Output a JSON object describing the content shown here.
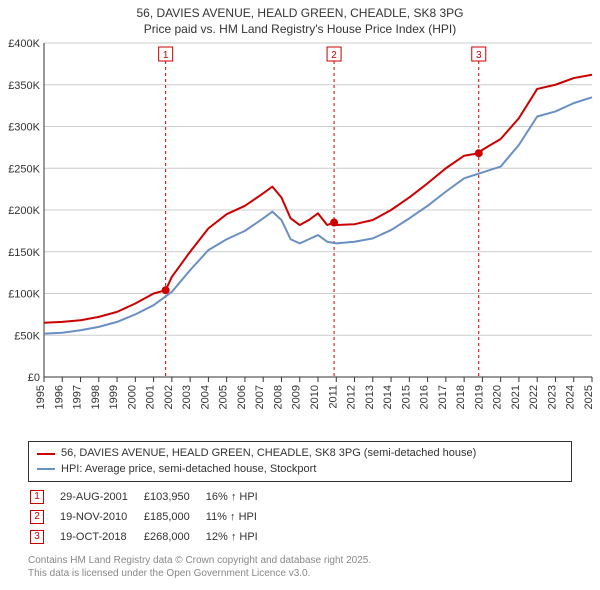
{
  "title_line1": "56, DAVIES AVENUE, HEALD GREEN, CHEADLE, SK8 3PG",
  "title_line2": "Price paid vs. HM Land Registry's House Price Index (HPI)",
  "chart": {
    "type": "line",
    "background_color": "#ffffff",
    "grid_color": "#cccccc",
    "axis_color": "#333333",
    "xlim": [
      1995,
      2025
    ],
    "ylim": [
      0,
      400000
    ],
    "ytick_step": 50000,
    "ytick_labels": [
      "£0",
      "£50K",
      "£100K",
      "£150K",
      "£200K",
      "£250K",
      "£300K",
      "£350K",
      "£400K"
    ],
    "xtick_step": 1,
    "xtick_labels": [
      "1995",
      "1996",
      "1997",
      "1998",
      "1999",
      "2000",
      "2001",
      "2002",
      "2003",
      "2004",
      "2005",
      "2006",
      "2007",
      "2008",
      "2009",
      "2010",
      "2011",
      "2012",
      "2013",
      "2014",
      "2015",
      "2016",
      "2017",
      "2018",
      "2019",
      "2020",
      "2021",
      "2022",
      "2023",
      "2024",
      "2025"
    ],
    "series": [
      {
        "name": "price_paid",
        "color": "#cc0000",
        "line_width": 2,
        "points": [
          [
            1995,
            65000
          ],
          [
            1996,
            66000
          ],
          [
            1997,
            68000
          ],
          [
            1998,
            72000
          ],
          [
            1999,
            78000
          ],
          [
            2000,
            88000
          ],
          [
            2001,
            100000
          ],
          [
            2001.66,
            103950
          ],
          [
            2002,
            120000
          ],
          [
            2003,
            150000
          ],
          [
            2004,
            178000
          ],
          [
            2005,
            195000
          ],
          [
            2006,
            205000
          ],
          [
            2007,
            220000
          ],
          [
            2007.5,
            228000
          ],
          [
            2008,
            215000
          ],
          [
            2008.5,
            190000
          ],
          [
            2009,
            182000
          ],
          [
            2009.5,
            188000
          ],
          [
            2010,
            196000
          ],
          [
            2010.5,
            182000
          ],
          [
            2010.88,
            185000
          ],
          [
            2011,
            182000
          ],
          [
            2012,
            183000
          ],
          [
            2013,
            188000
          ],
          [
            2014,
            200000
          ],
          [
            2015,
            215000
          ],
          [
            2016,
            232000
          ],
          [
            2017,
            250000
          ],
          [
            2018,
            265000
          ],
          [
            2018.8,
            268000
          ],
          [
            2019,
            272000
          ],
          [
            2019.3,
            276000
          ],
          [
            2020,
            285000
          ],
          [
            2021,
            310000
          ],
          [
            2022,
            345000
          ],
          [
            2023,
            350000
          ],
          [
            2024,
            358000
          ],
          [
            2025,
            362000
          ]
        ]
      },
      {
        "name": "hpi",
        "color": "#6a8fc4",
        "line_width": 2,
        "points": [
          [
            1995,
            52000
          ],
          [
            1996,
            53000
          ],
          [
            1997,
            56000
          ],
          [
            1998,
            60000
          ],
          [
            1999,
            66000
          ],
          [
            2000,
            75000
          ],
          [
            2001,
            86000
          ],
          [
            2002,
            102000
          ],
          [
            2003,
            128000
          ],
          [
            2004,
            152000
          ],
          [
            2005,
            165000
          ],
          [
            2006,
            175000
          ],
          [
            2007,
            190000
          ],
          [
            2007.5,
            198000
          ],
          [
            2008,
            188000
          ],
          [
            2008.5,
            165000
          ],
          [
            2009,
            160000
          ],
          [
            2009.5,
            165000
          ],
          [
            2010,
            170000
          ],
          [
            2010.5,
            162000
          ],
          [
            2011,
            160000
          ],
          [
            2012,
            162000
          ],
          [
            2013,
            166000
          ],
          [
            2014,
            176000
          ],
          [
            2015,
            190000
          ],
          [
            2016,
            205000
          ],
          [
            2017,
            222000
          ],
          [
            2018,
            238000
          ],
          [
            2019,
            245000
          ],
          [
            2020,
            252000
          ],
          [
            2021,
            278000
          ],
          [
            2022,
            312000
          ],
          [
            2023,
            318000
          ],
          [
            2024,
            328000
          ],
          [
            2025,
            335000
          ]
        ]
      }
    ],
    "markers": [
      {
        "num": "1",
        "x": 2001.66,
        "y": 103950,
        "line_x": 2001.66
      },
      {
        "num": "2",
        "x": 2010.88,
        "y": 185000,
        "line_x": 2010.88
      },
      {
        "num": "3",
        "x": 2018.8,
        "y": 268000,
        "line_x": 2018.8
      }
    ],
    "marker_color": "#cc0000",
    "marker_line_color": "#cc0000"
  },
  "legend": {
    "border_color": "#333333",
    "items": [
      {
        "color": "#cc0000",
        "label": "56, DAVIES AVENUE, HEALD GREEN, CHEADLE, SK8 3PG (semi-detached house)"
      },
      {
        "color": "#6a8fc4",
        "label": "HPI: Average price, semi-detached house, Stockport"
      }
    ]
  },
  "sales": [
    {
      "num": "1",
      "date": "29-AUG-2001",
      "price": "£103,950",
      "delta": "16% ↑ HPI"
    },
    {
      "num": "2",
      "date": "19-NOV-2010",
      "price": "£185,000",
      "delta": "11% ↑ HPI"
    },
    {
      "num": "3",
      "date": "19-OCT-2018",
      "price": "£268,000",
      "delta": "12% ↑ HPI"
    }
  ],
  "footer_line1": "Contains HM Land Registry data © Crown copyright and database right 2025.",
  "footer_line2": "This data is licensed under the Open Government Licence v3.0."
}
